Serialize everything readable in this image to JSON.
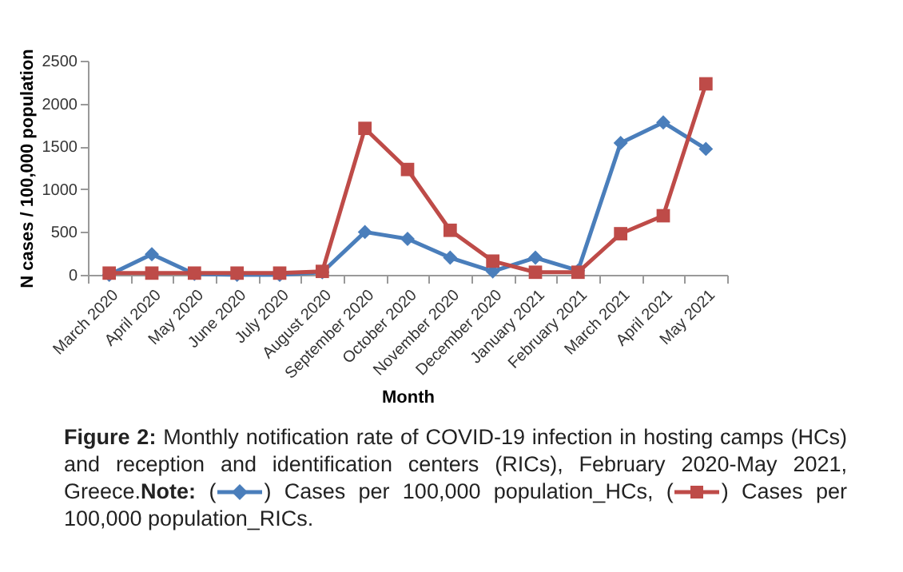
{
  "chart_data": {
    "type": "line",
    "xlabel": "Month",
    "ylabel": "N cases / 100,000 population",
    "categories": [
      "March 2020",
      "April 2020",
      "May 2020",
      "June 2020",
      "July 2020",
      "August 2020",
      "September 2020",
      "October 2020",
      "November 2020",
      "December 2020",
      "January 2021",
      "February 2021",
      "March 2021",
      "April 2021",
      "May 2021"
    ],
    "series": [
      {
        "name": "Cases per 100,000 population_HCs",
        "color": "#4a7ebb",
        "marker": "diamond",
        "values": [
          0,
          240,
          10,
          0,
          0,
          30,
          500,
          420,
          200,
          40,
          200,
          50,
          1540,
          1780,
          1470
        ]
      },
      {
        "name": "Cases per 100,000 population_RICs",
        "color": "#be4b48",
        "marker": "square",
        "values": [
          20,
          20,
          20,
          20,
          20,
          40,
          1710,
          1230,
          520,
          160,
          30,
          30,
          480,
          690,
          2230
        ]
      }
    ],
    "ylim": [
      0,
      2500
    ],
    "yticks": [
      0,
      500,
      1000,
      1500,
      2000,
      2500
    ],
    "grid": false,
    "annotations": [
      "Figure 2:",
      "Monthly notification rate of COVID-19 infection in hosting camps (HCs) and reception and identification centers (RICs), February 2020-May 2021, Greece.",
      "Note:",
      "(",
      ")",
      ",",
      "."
    ]
  }
}
